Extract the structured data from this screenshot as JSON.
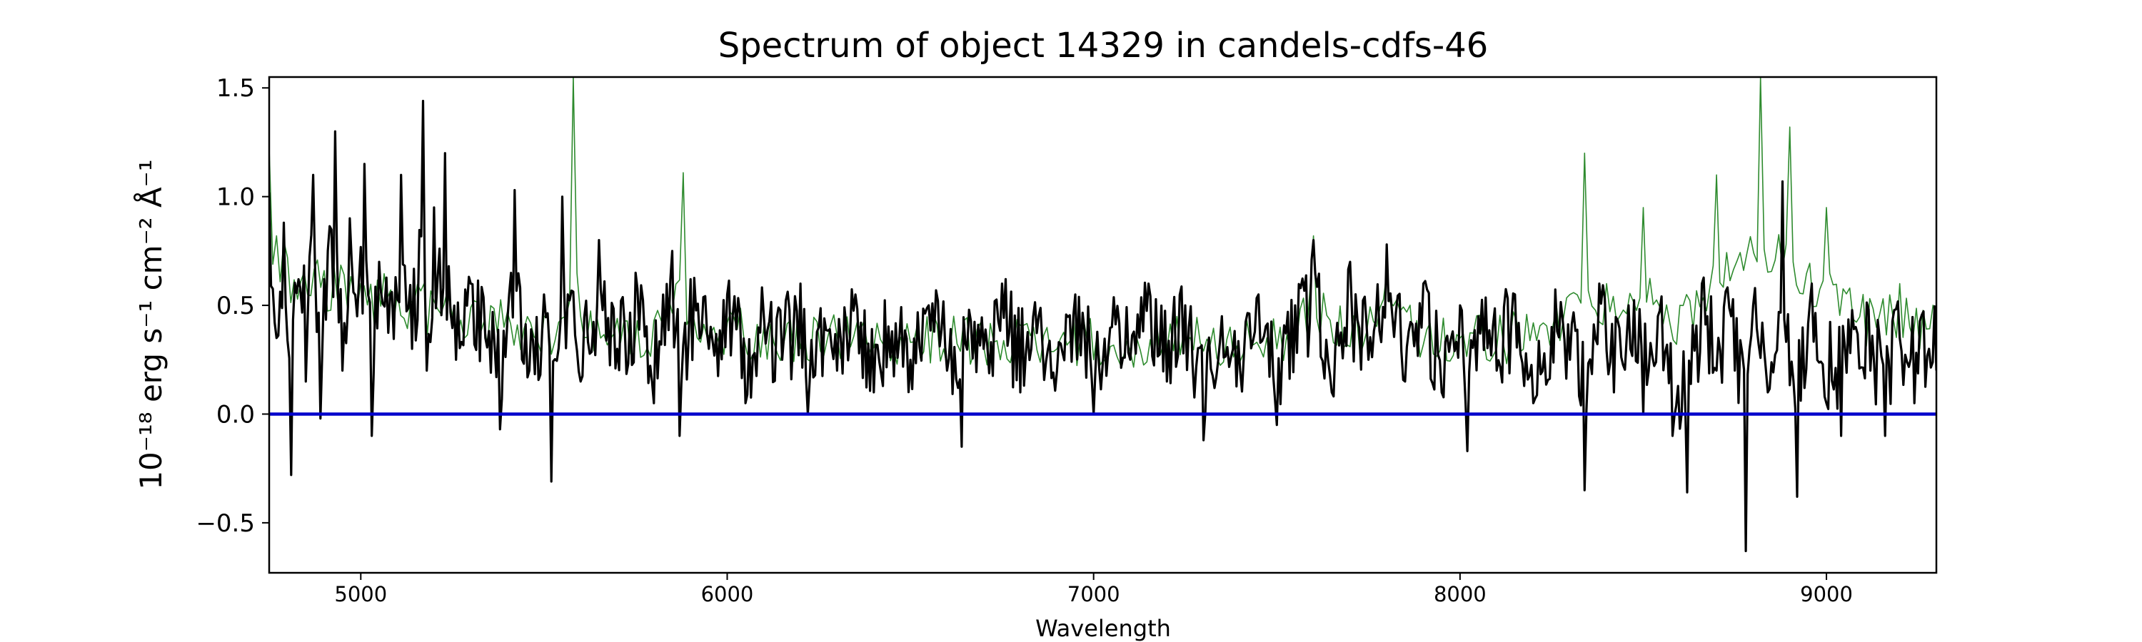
{
  "chart_data": {
    "type": "line",
    "title": "Spectrum of object 14329 in candels-cdfs-46",
    "xlabel": "Wavelength",
    "ylabel": "10⁻¹⁸ erg s⁻¹ cm⁻² Å⁻¹",
    "xlim": [
      4750,
      9300
    ],
    "ylim": [
      -0.73,
      1.55
    ],
    "xticks": [
      5000,
      6000,
      7000,
      8000,
      9000
    ],
    "xtick_labels": [
      "5000",
      "6000",
      "7000",
      "8000",
      "9000"
    ],
    "yticks": [
      -0.5,
      0.0,
      0.5,
      1.0,
      1.5
    ],
    "ytick_labels": [
      "−0.5",
      "0.0",
      "0.5",
      "1.0",
      "1.5"
    ],
    "grid": false,
    "legend": "none",
    "series": [
      {
        "role": "observed flux",
        "color": "#000000",
        "x": [
          4750,
          4770,
          4790,
          4810,
          4830,
          4850,
          4870,
          4890,
          4910,
          4930,
          4950,
          4970,
          4990,
          5010,
          5030,
          5050,
          5080,
          5110,
          5140,
          5170,
          5180,
          5200,
          5230,
          5260,
          5300,
          5340,
          5380,
          5420,
          5460,
          5500,
          5520,
          5550,
          5600,
          5650,
          5700,
          5750,
          5800,
          5850,
          5870,
          5900,
          5950,
          6000,
          6050,
          6100,
          6150,
          6200,
          6220,
          6250,
          6300,
          6350,
          6400,
          6450,
          6500,
          6550,
          6600,
          6640,
          6660,
          6700,
          6750,
          6800,
          6850,
          6900,
          6950,
          7000,
          7050,
          7100,
          7150,
          7200,
          7250,
          7300,
          7350,
          7400,
          7450,
          7500,
          7550,
          7600,
          7650,
          7700,
          7750,
          7800,
          7850,
          7900,
          7950,
          8000,
          8020,
          8050,
          8100,
          8150,
          8200,
          8250,
          8300,
          8340,
          8380,
          8420,
          8460,
          8500,
          8540,
          8580,
          8620,
          8660,
          8700,
          8740,
          8780,
          8800,
          8840,
          8880,
          8920,
          8960,
          9000,
          9040,
          9080,
          9120,
          9160,
          9200,
          9240,
          9280,
          9300
        ],
        "y": [
          1.02,
          0.35,
          0.88,
          -0.28,
          0.62,
          0.15,
          1.1,
          -0.02,
          0.75,
          1.3,
          0.2,
          0.9,
          0.45,
          1.15,
          -0.1,
          0.7,
          0.55,
          1.1,
          0.3,
          1.44,
          0.2,
          0.95,
          1.2,
          0.25,
          0.6,
          0.35,
          -0.07,
          1.03,
          0.2,
          0.55,
          -0.31,
          1.0,
          0.15,
          0.8,
          0.3,
          0.65,
          0.05,
          0.75,
          -0.1,
          0.62,
          0.3,
          0.55,
          0.05,
          0.45,
          0.25,
          0.6,
          0.0,
          0.4,
          0.2,
          0.55,
          0.1,
          0.38,
          0.25,
          0.5,
          0.2,
          -0.15,
          0.48,
          0.3,
          0.6,
          0.1,
          0.45,
          0.2,
          0.55,
          0.0,
          0.4,
          0.25,
          0.6,
          0.15,
          0.5,
          -0.12,
          0.45,
          0.2,
          0.55,
          -0.05,
          0.5,
          0.8,
          0.1,
          0.7,
          0.25,
          0.78,
          0.15,
          0.6,
          0.1,
          0.5,
          -0.17,
          0.45,
          0.2,
          0.55,
          0.05,
          0.4,
          0.25,
          -0.35,
          0.6,
          0.1,
          0.5,
          0.0,
          0.45,
          -0.1,
          -0.36,
          0.6,
          0.2,
          0.45,
          -0.63,
          0.5,
          0.1,
          1.07,
          -0.38,
          0.6,
          0.05,
          -0.1,
          0.4,
          0.2,
          -0.1,
          0.35,
          0.05,
          0.3,
          0.2
        ],
        "noise_amplitude": 0.22
      },
      {
        "role": "model spectrum",
        "color": "#2e8b2e",
        "x": [
          4750,
          4800,
          4900,
          5000,
          5100,
          5200,
          5300,
          5400,
          5500,
          5560,
          5580,
          5600,
          5700,
          5800,
          5880,
          5900,
          6000,
          6100,
          6300,
          6500,
          6700,
          6900,
          7100,
          7300,
          7500,
          7600,
          7700,
          7800,
          7900,
          8000,
          8100,
          8200,
          8300,
          8340,
          8400,
          8500,
          8600,
          8700,
          8820,
          8900,
          9000,
          9100,
          9200,
          9300
        ],
        "y": [
          1.22,
          0.72,
          0.66,
          0.6,
          0.56,
          0.52,
          0.49,
          0.47,
          0.45,
          0.45,
          1.55,
          0.45,
          0.44,
          0.43,
          1.11,
          0.45,
          0.42,
          0.4,
          0.36,
          0.33,
          0.31,
          0.3,
          0.29,
          0.29,
          0.3,
          0.82,
          0.31,
          0.65,
          0.32,
          0.35,
          0.3,
          0.42,
          0.55,
          1.2,
          0.6,
          0.95,
          0.5,
          1.1,
          1.55,
          1.32,
          0.95,
          0.55,
          0.6,
          0.45
        ],
        "noise_amplitude": 0.12
      },
      {
        "role": "zero line",
        "color": "#0000cc",
        "x": [
          4750,
          9300
        ],
        "y": [
          0.0,
          0.0
        ]
      }
    ]
  }
}
